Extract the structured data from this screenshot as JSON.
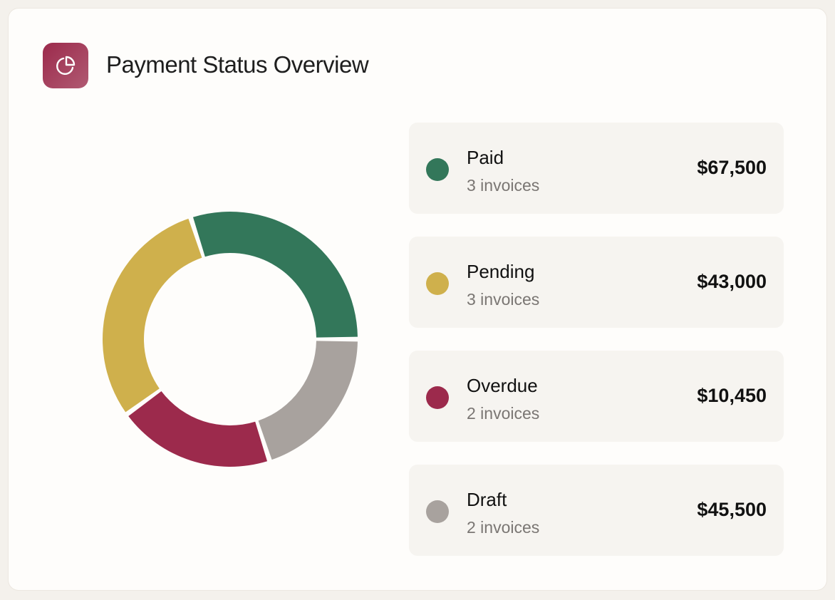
{
  "header": {
    "title": "Payment Status Overview",
    "icon": "pie-chart-icon",
    "icon_color": "#9c2a4c"
  },
  "chart_data": {
    "type": "pie",
    "variant": "donut",
    "categories": [
      "Paid",
      "Pending",
      "Overdue",
      "Draft"
    ],
    "values": [
      3,
      3,
      2,
      2
    ],
    "amounts": [
      "$67,500",
      "$43,000",
      "$10,450",
      "$45,500"
    ],
    "counts": [
      "3 invoices",
      "3 invoices",
      "2 invoices",
      "2 invoices"
    ],
    "colors": [
      "#33775a",
      "#cfb04c",
      "#9c2a4c",
      "#a8a29e"
    ],
    "legend": "right"
  }
}
